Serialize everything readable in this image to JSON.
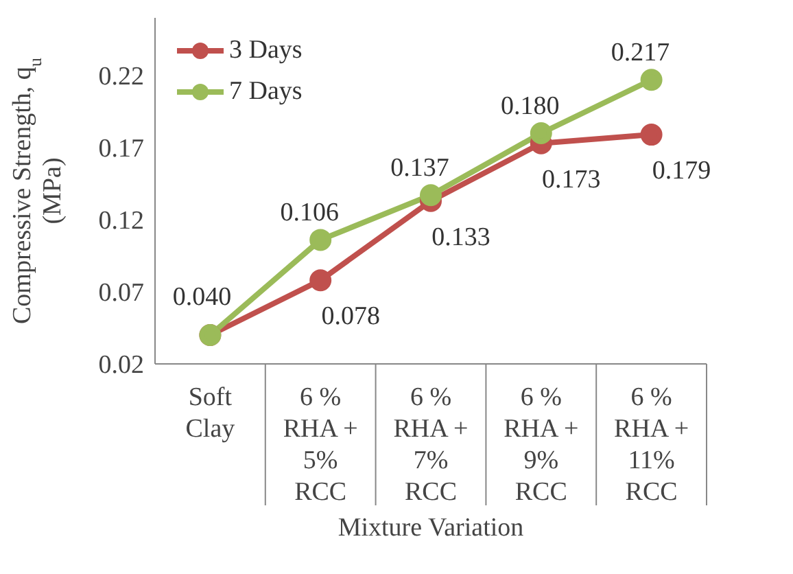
{
  "chart_data": {
    "type": "line",
    "xlabel": "Mixture Variation",
    "ylabel": "Compressive Strength, q$_{u}$ (MPa)",
    "categories": [
      "Soft Clay",
      "6 % RHA + 5% RCC",
      "6 % RHA + 7% RCC",
      "6 % RHA + 9% RCC",
      "6 % RHA + 11% RCC"
    ],
    "series": [
      {
        "name": "3 Days",
        "color": "#c0504d",
        "values": [
          0.04,
          0.078,
          0.133,
          0.173,
          0.179
        ],
        "value_labels": [
          "0.040",
          "0.078",
          "0.133",
          "0.173",
          "0.179"
        ]
      },
      {
        "name": "7 Days",
        "color": "#9bbb59",
        "values": [
          0.04,
          0.106,
          0.137,
          0.18,
          0.217
        ],
        "value_labels": [
          null,
          "0.106",
          "0.137",
          "0.180",
          "0.217"
        ]
      }
    ],
    "ylim": [
      0.02,
      0.26
    ],
    "yticks": [
      0.02,
      0.07,
      0.12,
      0.17,
      0.22
    ],
    "grid": false,
    "legend": "top left",
    "marker": "circle",
    "line_style": "solid"
  }
}
